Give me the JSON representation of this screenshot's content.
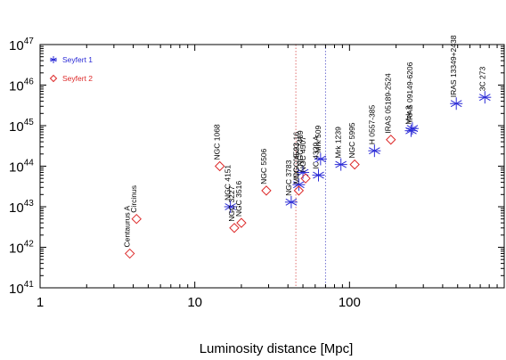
{
  "chart_data": {
    "type": "scatter",
    "xscale": "log",
    "yscale": "log",
    "xlim": [
      1,
      1000
    ],
    "ylim": [
      1e+41,
      1e+47
    ],
    "xlabel": "Luminosity distance [Mpc]",
    "x_tick_labels": [
      {
        "value": 1,
        "label": "1"
      },
      {
        "value": 10,
        "label": "10"
      },
      {
        "value": 100,
        "label": "100"
      }
    ],
    "y_tick_labels": [
      {
        "value": 1e+41,
        "base": "10",
        "exp": "41"
      },
      {
        "value": 1e+42,
        "base": "10",
        "exp": "42"
      },
      {
        "value": 1e+43,
        "base": "10",
        "exp": "43"
      },
      {
        "value": 1e+44,
        "base": "10",
        "exp": "44"
      },
      {
        "value": 1e+45,
        "base": "10",
        "exp": "45"
      },
      {
        "value": 1e+46,
        "base": "10",
        "exp": "46"
      },
      {
        "value": 1e+47,
        "base": "10",
        "exp": "47"
      }
    ],
    "vertical_lines": [
      {
        "x": 45,
        "color": "#e07070",
        "style": "dotted"
      },
      {
        "x": 70,
        "color": "#7070d0",
        "style": "dotted"
      }
    ],
    "series": [
      {
        "name": "Seyfert 1",
        "marker": "asterisk",
        "color": "#2a2ad6",
        "points": [
          {
            "x": 17,
            "y": 1e+43,
            "label": "NGC 4151"
          },
          {
            "x": 42,
            "y": 1.3e+43,
            "label": "NGC 3783"
          },
          {
            "x": 47,
            "y": 3.5e+43,
            "label": "NGC 4593"
          },
          {
            "x": 50,
            "y": 7e+43,
            "label": "NGC 7469"
          },
          {
            "x": 63,
            "y": 6e+43,
            "label": "IC 4329 A"
          },
          {
            "x": 65,
            "y": 1.5e+44,
            "label": "Mrk 509"
          },
          {
            "x": 88,
            "y": 1.1e+44,
            "label": "Mrk 1239"
          },
          {
            "x": 145,
            "y": 2.4e+44,
            "label": "H 0557-385"
          },
          {
            "x": 250,
            "y": 7.5e+44,
            "label": "Mrk 3"
          },
          {
            "x": 255,
            "y": 8.5e+44,
            "label": "IRAS 09149-6206"
          },
          {
            "x": 490,
            "y": 3.5e+45,
            "label": "IRAS 13349+2438"
          },
          {
            "x": 750,
            "y": 5e+45,
            "label": "3C 273"
          }
        ]
      },
      {
        "name": "Seyfert 2",
        "marker": "diamond",
        "color": "#dd2a2a",
        "points": [
          {
            "x": 3.8,
            "y": 7e+41,
            "label": "Centaurus A"
          },
          {
            "x": 4.2,
            "y": 5e+42,
            "label": "Circinus"
          },
          {
            "x": 14.5,
            "y": 1e+44,
            "label": "NGC 1068"
          },
          {
            "x": 18,
            "y": 3e+42,
            "label": "NGC 3227"
          },
          {
            "x": 20,
            "y": 4e+42,
            "label": "NGC 3516"
          },
          {
            "x": 29,
            "y": 2.5e+43,
            "label": "NGC 5506"
          },
          {
            "x": 47,
            "y": 2.5e+43,
            "label": "MCG -05-23-16"
          },
          {
            "x": 52,
            "y": 5e+43,
            "label": "NGC 4507"
          },
          {
            "x": 108,
            "y": 1.1e+44,
            "label": "NGC 5995"
          },
          {
            "x": 185,
            "y": 4.5e+44,
            "label": "IRAS 05189-2524"
          }
        ]
      }
    ],
    "legend": {
      "placement": "top-left",
      "entries": [
        {
          "name": "Seyfert 1",
          "marker": "asterisk",
          "color": "#2a2ad6"
        },
        {
          "name": "Seyfert 2",
          "marker": "diamond",
          "color": "#dd2a2a"
        }
      ]
    },
    "grid": false
  }
}
